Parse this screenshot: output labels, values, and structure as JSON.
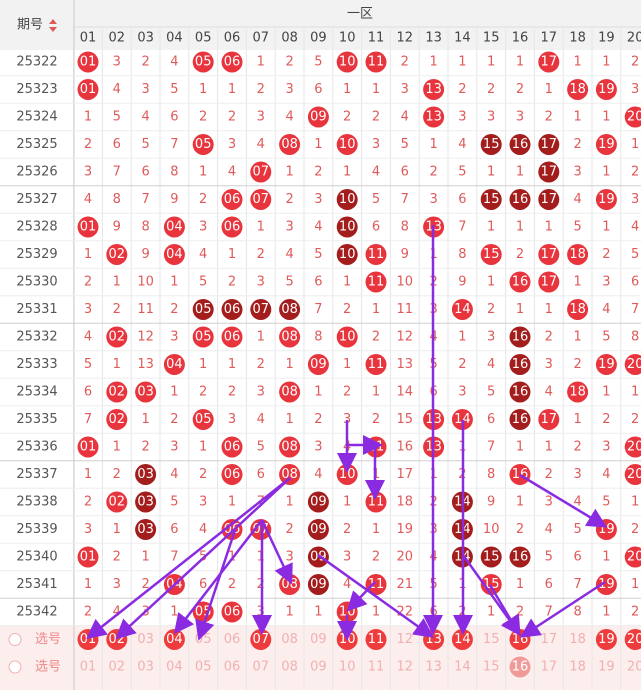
{
  "header": {
    "issue_label": "期号",
    "zone": "一区"
  },
  "columns": [
    "01",
    "02",
    "03",
    "04",
    "05",
    "06",
    "07",
    "08",
    "09",
    "10",
    "11",
    "12",
    "13",
    "14",
    "15",
    "16",
    "17",
    "18",
    "19",
    "20"
  ],
  "rows": [
    {
      "issue": "25322",
      "cells": [
        {
          "text": "01",
          "ball": "hit"
        },
        "3",
        "2",
        "4",
        {
          "text": "05",
          "ball": "hit"
        },
        {
          "text": "06",
          "ball": "hit"
        },
        "1",
        "2",
        "5",
        {
          "text": "10",
          "ball": "hit"
        },
        {
          "text": "11",
          "ball": "hit"
        },
        "2",
        "1",
        "1",
        "1",
        "1",
        {
          "text": "17",
          "ball": "hit"
        },
        "1",
        "1",
        "2"
      ]
    },
    {
      "issue": "25323",
      "cells": [
        {
          "text": "01",
          "ball": "hit"
        },
        "4",
        "3",
        "5",
        "1",
        "1",
        "2",
        "3",
        "6",
        "1",
        "1",
        "3",
        {
          "text": "13",
          "ball": "hit"
        },
        "2",
        "2",
        "2",
        "1",
        {
          "text": "18",
          "ball": "hit"
        },
        {
          "text": "19",
          "ball": "hit"
        },
        "3"
      ]
    },
    {
      "issue": "25324",
      "cells": [
        "1",
        "5",
        "4",
        "6",
        "2",
        "2",
        "3",
        "4",
        {
          "text": "09",
          "ball": "hit"
        },
        "2",
        "2",
        "4",
        {
          "text": "13",
          "ball": "hit"
        },
        "3",
        "3",
        "3",
        "2",
        "1",
        "1",
        {
          "text": "20",
          "ball": "hit"
        }
      ]
    },
    {
      "issue": "25325",
      "cells": [
        "2",
        "6",
        "5",
        "7",
        {
          "text": "05",
          "ball": "hit"
        },
        "3",
        "4",
        {
          "text": "08",
          "ball": "hit"
        },
        "1",
        {
          "text": "10",
          "ball": "hit"
        },
        "3",
        "5",
        "1",
        "4",
        {
          "text": "15",
          "ball": "repeat"
        },
        {
          "text": "16",
          "ball": "repeat"
        },
        {
          "text": "17",
          "ball": "repeat"
        },
        "2",
        {
          "text": "19",
          "ball": "hit"
        },
        "1"
      ]
    },
    {
      "issue": "25326",
      "cells": [
        "3",
        "7",
        "6",
        "8",
        "1",
        "4",
        {
          "text": "07",
          "ball": "hit"
        },
        "1",
        "2",
        "1",
        "4",
        "6",
        "2",
        "5",
        "1",
        "1",
        {
          "text": "17",
          "ball": "repeat"
        },
        "3",
        "1",
        "2"
      ]
    },
    {
      "issue": "25327",
      "cells": [
        "4",
        "8",
        "7",
        "9",
        "2",
        {
          "text": "06",
          "ball": "hit"
        },
        {
          "text": "07",
          "ball": "hit"
        },
        "2",
        "3",
        {
          "text": "10",
          "ball": "repeat"
        },
        "5",
        "7",
        "3",
        "6",
        {
          "text": "15",
          "ball": "repeat"
        },
        {
          "text": "16",
          "ball": "repeat"
        },
        {
          "text": "17",
          "ball": "repeat"
        },
        "4",
        {
          "text": "19",
          "ball": "hit"
        },
        "3"
      ]
    },
    {
      "issue": "25328",
      "cells": [
        {
          "text": "01",
          "ball": "hit"
        },
        "9",
        "8",
        {
          "text": "04",
          "ball": "hit"
        },
        "3",
        {
          "text": "06",
          "ball": "hit"
        },
        "1",
        "3",
        "4",
        {
          "text": "10",
          "ball": "repeat"
        },
        "6",
        "8",
        {
          "text": "13",
          "ball": "hit"
        },
        "7",
        "1",
        "1",
        "1",
        "5",
        "1",
        "4"
      ]
    },
    {
      "issue": "25329",
      "cells": [
        "1",
        {
          "text": "02",
          "ball": "hit"
        },
        "9",
        {
          "text": "04",
          "ball": "hit"
        },
        "4",
        "1",
        "2",
        "4",
        "5",
        {
          "text": "10",
          "ball": "repeat"
        },
        {
          "text": "11",
          "ball": "hit"
        },
        "9",
        "1",
        "8",
        {
          "text": "15",
          "ball": "hit"
        },
        "2",
        {
          "text": "17",
          "ball": "hit"
        },
        {
          "text": "18",
          "ball": "hit"
        },
        "2",
        "5"
      ]
    },
    {
      "issue": "25330",
      "cells": [
        "2",
        "1",
        "10",
        "1",
        "5",
        "2",
        "3",
        "5",
        "6",
        "1",
        {
          "text": "11",
          "ball": "hit"
        },
        "10",
        "2",
        "9",
        "1",
        {
          "text": "16",
          "ball": "hit"
        },
        {
          "text": "17",
          "ball": "hit"
        },
        "1",
        "3",
        "6"
      ]
    },
    {
      "issue": "25331",
      "cells": [
        "3",
        "2",
        "11",
        "2",
        {
          "text": "05",
          "ball": "repeat"
        },
        {
          "text": "06",
          "ball": "repeat"
        },
        {
          "text": "07",
          "ball": "repeat"
        },
        {
          "text": "08",
          "ball": "repeat"
        },
        "7",
        "2",
        "1",
        "11",
        "3",
        {
          "text": "14",
          "ball": "hit"
        },
        "2",
        "1",
        "1",
        {
          "text": "18",
          "ball": "hit"
        },
        "4",
        "7"
      ]
    },
    {
      "issue": "25332",
      "cells": [
        "4",
        {
          "text": "02",
          "ball": "hit"
        },
        "12",
        "3",
        {
          "text": "05",
          "ball": "hit"
        },
        {
          "text": "06",
          "ball": "hit"
        },
        "1",
        {
          "text": "08",
          "ball": "hit"
        },
        "8",
        {
          "text": "10",
          "ball": "hit"
        },
        "2",
        "12",
        "4",
        "1",
        "3",
        {
          "text": "16",
          "ball": "repeat"
        },
        "2",
        "1",
        "5",
        "8"
      ]
    },
    {
      "issue": "25333",
      "cells": [
        "5",
        "1",
        "13",
        {
          "text": "04",
          "ball": "hit"
        },
        "1",
        "1",
        "2",
        "1",
        {
          "text": "09",
          "ball": "hit"
        },
        "1",
        {
          "text": "11",
          "ball": "hit"
        },
        "13",
        "5",
        "2",
        "4",
        {
          "text": "16",
          "ball": "repeat"
        },
        "3",
        "2",
        {
          "text": "19",
          "ball": "hit"
        },
        {
          "text": "20",
          "ball": "hit"
        }
      ]
    },
    {
      "issue": "25334",
      "cells": [
        "6",
        {
          "text": "02",
          "ball": "hit"
        },
        {
          "text": "03",
          "ball": "hit"
        },
        "1",
        "2",
        "2",
        "3",
        {
          "text": "08",
          "ball": "hit"
        },
        "1",
        "2",
        "1",
        "14",
        "6",
        "3",
        "5",
        {
          "text": "16",
          "ball": "repeat"
        },
        "4",
        {
          "text": "18",
          "ball": "hit"
        },
        "1",
        "1"
      ]
    },
    {
      "issue": "25335",
      "cells": [
        "7",
        {
          "text": "02",
          "ball": "hit"
        },
        "1",
        "2",
        {
          "text": "05",
          "ball": "hit"
        },
        "3",
        "4",
        "1",
        "2",
        "3",
        "2",
        "15",
        {
          "text": "13",
          "ball": "hit"
        },
        {
          "text": "14",
          "ball": "hit"
        },
        "6",
        {
          "text": "16",
          "ball": "repeat"
        },
        {
          "text": "17",
          "ball": "hit"
        },
        "1",
        "2",
        "2"
      ]
    },
    {
      "issue": "25336",
      "cells": [
        {
          "text": "01",
          "ball": "hit"
        },
        "1",
        "2",
        "3",
        "1",
        {
          "text": "06",
          "ball": "hit"
        },
        "5",
        {
          "text": "08",
          "ball": "hit"
        },
        "3",
        "4",
        {
          "text": "11",
          "ball": "hit"
        },
        "16",
        {
          "text": "13",
          "ball": "hit"
        },
        "1",
        "7",
        "1",
        "1",
        "2",
        "3",
        {
          "text": "20",
          "ball": "hit"
        }
      ]
    },
    {
      "issue": "25337",
      "cells": [
        "1",
        "2",
        {
          "text": "03",
          "ball": "repeat"
        },
        "4",
        "2",
        {
          "text": "06",
          "ball": "hit"
        },
        "6",
        {
          "text": "08",
          "ball": "hit"
        },
        "4",
        {
          "text": "10",
          "ball": "hit"
        },
        "1",
        "17",
        "1",
        "2",
        "8",
        {
          "text": "16",
          "ball": "hit"
        },
        "2",
        "3",
        "4",
        {
          "text": "20",
          "ball": "hit"
        }
      ]
    },
    {
      "issue": "25338",
      "cells": [
        "2",
        {
          "text": "02",
          "ball": "hit"
        },
        {
          "text": "03",
          "ball": "repeat"
        },
        "5",
        "3",
        "1",
        "7",
        "1",
        {
          "text": "09",
          "ball": "repeat"
        },
        "1",
        {
          "text": "11",
          "ball": "hit"
        },
        "18",
        "2",
        {
          "text": "14",
          "ball": "repeat"
        },
        "9",
        "1",
        "3",
        "4",
        "5",
        "1"
      ]
    },
    {
      "issue": "25339",
      "cells": [
        "3",
        "1",
        {
          "text": "03",
          "ball": "repeat"
        },
        "6",
        "4",
        {
          "text": "06",
          "ball": "hit"
        },
        {
          "text": "07",
          "ball": "hit"
        },
        "2",
        {
          "text": "09",
          "ball": "repeat"
        },
        "2",
        "1",
        "19",
        "3",
        {
          "text": "14",
          "ball": "repeat"
        },
        "10",
        "2",
        "4",
        "5",
        {
          "text": "19",
          "ball": "hit"
        },
        "2"
      ]
    },
    {
      "issue": "25340",
      "cells": [
        {
          "text": "01",
          "ball": "hit"
        },
        "2",
        "1",
        "7",
        "5",
        "1",
        "1",
        "3",
        {
          "text": "09",
          "ball": "repeat"
        },
        "3",
        "2",
        "20",
        "4",
        {
          "text": "14",
          "ball": "repeat"
        },
        {
          "text": "15",
          "ball": "repeat"
        },
        {
          "text": "16",
          "ball": "repeat"
        },
        "5",
        "6",
        "1",
        {
          "text": "20",
          "ball": "hit"
        }
      ]
    },
    {
      "issue": "25341",
      "cells": [
        "1",
        "3",
        "2",
        {
          "text": "04",
          "ball": "hit"
        },
        "6",
        "2",
        "2",
        {
          "text": "08",
          "ball": "hit"
        },
        {
          "text": "09",
          "ball": "repeat"
        },
        "4",
        {
          "text": "11",
          "ball": "hit"
        },
        "21",
        "5",
        "1",
        {
          "text": "15",
          "ball": "hit"
        },
        "1",
        "6",
        "7",
        {
          "text": "19",
          "ball": "hit"
        },
        "1"
      ]
    },
    {
      "issue": "25342",
      "cells": [
        "2",
        "4",
        "3",
        "1",
        {
          "text": "05",
          "ball": "hit"
        },
        {
          "text": "06",
          "ball": "hit"
        },
        "3",
        "1",
        "1",
        {
          "text": "10",
          "ball": "hit"
        },
        "1",
        "22",
        "6",
        "2",
        "1",
        "2",
        "7",
        "8",
        "1",
        "2"
      ]
    }
  ],
  "picks": [
    {
      "label": "选号",
      "cells": [
        {
          "text": "01",
          "ball": "selected"
        },
        {
          "text": "02",
          "ball": "selected"
        },
        "03",
        {
          "text": "04",
          "ball": "selected"
        },
        "05",
        "06",
        {
          "text": "07",
          "ball": "selected"
        },
        "08",
        "09",
        {
          "text": "10",
          "ball": "selected"
        },
        {
          "text": "11",
          "ball": "selected"
        },
        "12",
        {
          "text": "13",
          "ball": "selected"
        },
        {
          "text": "14",
          "ball": "selected"
        },
        "15",
        {
          "text": "16",
          "ball": "selected"
        },
        "17",
        "18",
        {
          "text": "19",
          "ball": "selected"
        },
        {
          "text": "20",
          "ball": "selected"
        }
      ]
    },
    {
      "label": "选号",
      "cells": [
        "01",
        "02",
        "03",
        "04",
        "05",
        "06",
        "07",
        "08",
        "09",
        "10",
        "11",
        "12",
        "13",
        "14",
        "15",
        {
          "text": "16",
          "ball": "faint"
        },
        "17",
        "18",
        "19",
        "20"
      ]
    }
  ]
}
